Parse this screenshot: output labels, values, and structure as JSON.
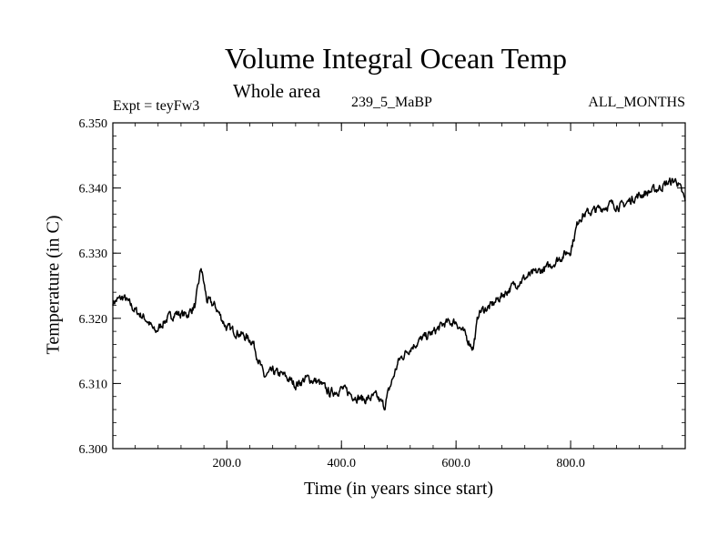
{
  "chart_data": {
    "type": "line",
    "title": "Volume Integral Ocean Temp",
    "subtitle": "Whole area",
    "experiment_label": "Expt = teyFw3",
    "case_label": "239_5_MaBP",
    "months_label": "ALL_MONTHS",
    "xlabel": "Time (in years since start)",
    "ylabel": "Temperature (in C)",
    "xlim": [
      1,
      1000
    ],
    "ylim": [
      6.3,
      6.35
    ],
    "xticks": [
      200,
      400,
      600,
      800
    ],
    "xtick_labels": [
      "200.0",
      "400.0",
      "600.0",
      "800.0"
    ],
    "yticks": [
      6.3,
      6.31,
      6.32,
      6.33,
      6.34,
      6.35
    ],
    "ytick_labels": [
      "6.300",
      "6.310",
      "6.320",
      "6.330",
      "6.340",
      "6.350"
    ],
    "grid": false,
    "series": [
      {
        "name": "Volume Integral Ocean Temp",
        "color": "#000000",
        "x": [
          1,
          20,
          40,
          60,
          75,
          90,
          110,
          130,
          145,
          155,
          165,
          180,
          200,
          220,
          245,
          265,
          280,
          300,
          320,
          340,
          360,
          380,
          400,
          420,
          440,
          460,
          475,
          485,
          500,
          520,
          540,
          560,
          580,
          600,
          620,
          630,
          640,
          660,
          680,
          700,
          720,
          740,
          760,
          780,
          800,
          815,
          830,
          850,
          870,
          890,
          910,
          930,
          950,
          970,
          985,
          1000
        ],
        "y": [
          6.3225,
          6.3232,
          6.3212,
          6.3198,
          6.3178,
          6.3195,
          6.3208,
          6.3205,
          6.322,
          6.3278,
          6.3228,
          6.3218,
          6.3185,
          6.3178,
          6.3165,
          6.311,
          6.3118,
          6.3112,
          6.3098,
          6.3108,
          6.3102,
          6.3085,
          6.3092,
          6.3082,
          6.3075,
          6.308,
          6.3065,
          6.3095,
          6.3135,
          6.3155,
          6.3168,
          6.3178,
          6.3192,
          6.3195,
          6.3168,
          6.3155,
          6.321,
          6.3218,
          6.3235,
          6.325,
          6.3262,
          6.327,
          6.3278,
          6.3292,
          6.3305,
          6.3355,
          6.3362,
          6.3368,
          6.3375,
          6.3372,
          6.3385,
          6.3392,
          6.3398,
          6.3408,
          6.3412,
          6.338
        ]
      }
    ]
  }
}
